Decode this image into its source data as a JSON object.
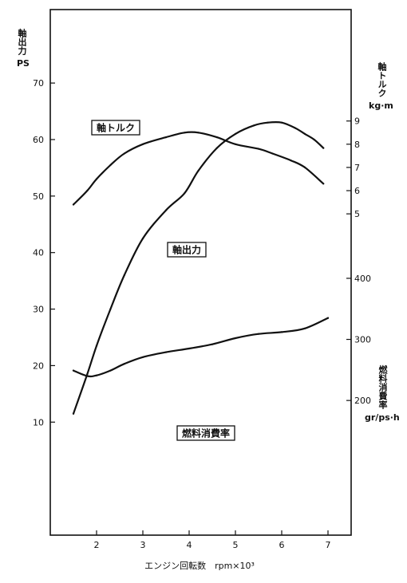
{
  "chart_data": {
    "type": "line",
    "xlabel": "エンジン回転数　rpm×10³",
    "x_ticks": [
      "2",
      "3",
      "4",
      "5",
      "6",
      "7"
    ],
    "xlim": [
      1.0,
      7.5
    ],
    "axes": {
      "power": {
        "title": "軸出力",
        "unit": "PS",
        "ticks": [
          "10",
          "20",
          "30",
          "40",
          "50",
          "60",
          "70"
        ],
        "ylim": [
          -10,
          83
        ]
      },
      "torque": {
        "title": "軸トルク",
        "unit": "kg·m",
        "ticks": [
          "5",
          "6",
          "7",
          "8",
          "9"
        ],
        "ylim": [
          -8.84,
          13.8
        ]
      },
      "fuel": {
        "title": "燃料消費率",
        "unit": "gr/ps·h",
        "ticks": [
          "200",
          "300",
          "400"
        ],
        "ylim": [
          -20.5,
          840
        ]
      }
    },
    "series": [
      {
        "name": "軸トルク",
        "axis": "torque",
        "x": [
          1.5,
          1.8,
          2.0,
          2.3,
          2.6,
          3.0,
          3.5,
          3.9,
          4.2,
          4.6,
          5.0,
          5.5,
          5.8,
          6.2,
          6.5,
          6.9
        ],
        "y": [
          5.4,
          6.0,
          6.5,
          7.1,
          7.6,
          8.0,
          8.3,
          8.5,
          8.5,
          8.3,
          8.0,
          7.8,
          7.6,
          7.3,
          7.0,
          6.3
        ]
      },
      {
        "name": "軸出力",
        "axis": "power",
        "x": [
          1.5,
          1.8,
          2.0,
          2.3,
          2.6,
          3.0,
          3.5,
          3.9,
          4.2,
          4.6,
          5.0,
          5.4,
          5.7,
          6.0,
          6.3,
          6.5,
          6.7,
          6.9
        ],
        "y": [
          11.5,
          18.5,
          23.5,
          30.0,
          36.0,
          42.5,
          47.5,
          50.5,
          54.5,
          58.5,
          61.0,
          62.5,
          63.0,
          63.0,
          62.0,
          61.0,
          60.0,
          58.5
        ]
      },
      {
        "name": "燃料消費率",
        "axis": "fuel",
        "x": [
          1.5,
          1.8,
          2.0,
          2.3,
          2.6,
          3.0,
          3.5,
          4.0,
          4.5,
          5.0,
          5.5,
          6.0,
          6.5,
          7.0
        ],
        "y": [
          249,
          240,
          241,
          249,
          260,
          271,
          279,
          285,
          292,
          302,
          309,
          312,
          318,
          335
        ]
      }
    ],
    "labels": [
      {
        "series": "軸トルク",
        "text": "軸トルク"
      },
      {
        "series": "軸出力",
        "text": "軸出力"
      },
      {
        "series": "燃料消費率",
        "text": "燃料消費率"
      }
    ],
    "grid": false
  }
}
